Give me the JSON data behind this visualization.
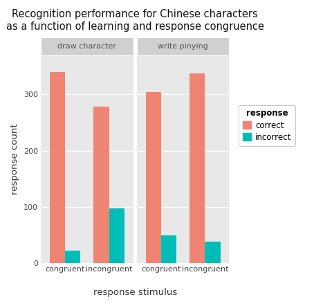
{
  "title": "Recognition performance for Chinese characters\nas a function of learning and response congruence",
  "xlabel": "response stimulus",
  "ylabel": "response count",
  "panels": [
    "draw character",
    "write pinying"
  ],
  "categories": [
    "congruent",
    "incongruent"
  ],
  "correct_color": "#F08472",
  "incorrect_color": "#00BDB8",
  "legend_title": "response",
  "legend_labels": [
    "correct",
    "incorrect"
  ],
  "data": {
    "draw character": {
      "congruent": {
        "correct": 340,
        "incorrect": 22
      },
      "incongruent": {
        "correct": 278,
        "incorrect": 98
      }
    },
    "write pinying": {
      "congruent": {
        "correct": 304,
        "incorrect": 50
      },
      "incongruent": {
        "correct": 338,
        "incorrect": 38
      }
    }
  },
  "ylim": [
    0,
    370
  ],
  "yticks": [
    0,
    100,
    200,
    300
  ],
  "background_color": "#E8E8E8",
  "panel_header_color": "#D0D0D0",
  "fig_background": "#FFFFFF",
  "title_fontsize": 10.5,
  "axis_label_fontsize": 9.5,
  "tick_fontsize": 8,
  "legend_fontsize": 8.5,
  "panel_label_fontsize": 8
}
